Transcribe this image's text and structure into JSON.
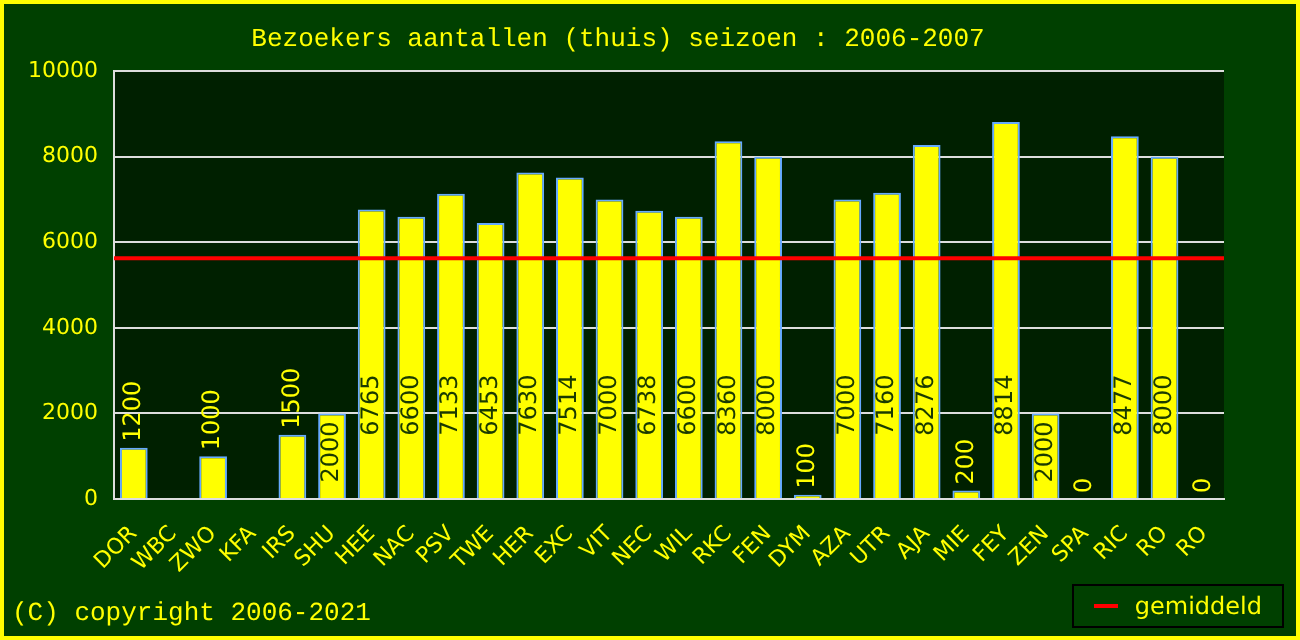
{
  "chart_data": {
    "type": "bar",
    "title": "Bezoekers aantallen (thuis) seizoen : 2006-2007",
    "categories": [
      "DOR",
      "WBC",
      "ZWO",
      "KFA",
      "IRS",
      "SHU",
      "HEE",
      "NAC",
      "PSV",
      "TWE",
      "HER",
      "EXC",
      "VIT",
      "NEC",
      "WIL",
      "RKC",
      "FEN",
      "DYM",
      "AZA",
      "UTR",
      "AJA",
      "MIE",
      "FEY",
      "ZEN",
      "SPA",
      "RIC",
      "RO",
      "RO"
    ],
    "values": [
      1200,
      0,
      1000,
      0,
      1500,
      2000,
      6765,
      6600,
      7133,
      6453,
      7630,
      7514,
      7000,
      6738,
      6600,
      8360,
      8000,
      100,
      7000,
      7160,
      8276,
      200,
      8814,
      2000,
      0,
      8477,
      8000,
      0
    ],
    "value_labels": [
      "1200",
      null,
      "1000",
      null,
      "1500",
      "2000",
      "6765",
      "6600",
      "7133",
      "6453",
      "7630",
      "7514",
      "7000",
      "6738",
      "6600",
      "8360",
      "8000",
      "100",
      "7000",
      "7160",
      "8276",
      "200",
      "8814",
      "2000",
      "0",
      "8477",
      "8000",
      "0"
    ],
    "color": "#ffff00",
    "ylim": [
      0,
      10000
    ],
    "yticks": [
      0,
      2000,
      4000,
      6000,
      8000,
      10000
    ],
    "grid": "y",
    "ref_lines": [
      {
        "axis": "y",
        "value": 5630,
        "label": "gemiddeld",
        "color": "#ff0000"
      }
    ],
    "legend": "bottom right",
    "annotations": [
      "(C) copyright 2006-2021"
    ]
  }
}
